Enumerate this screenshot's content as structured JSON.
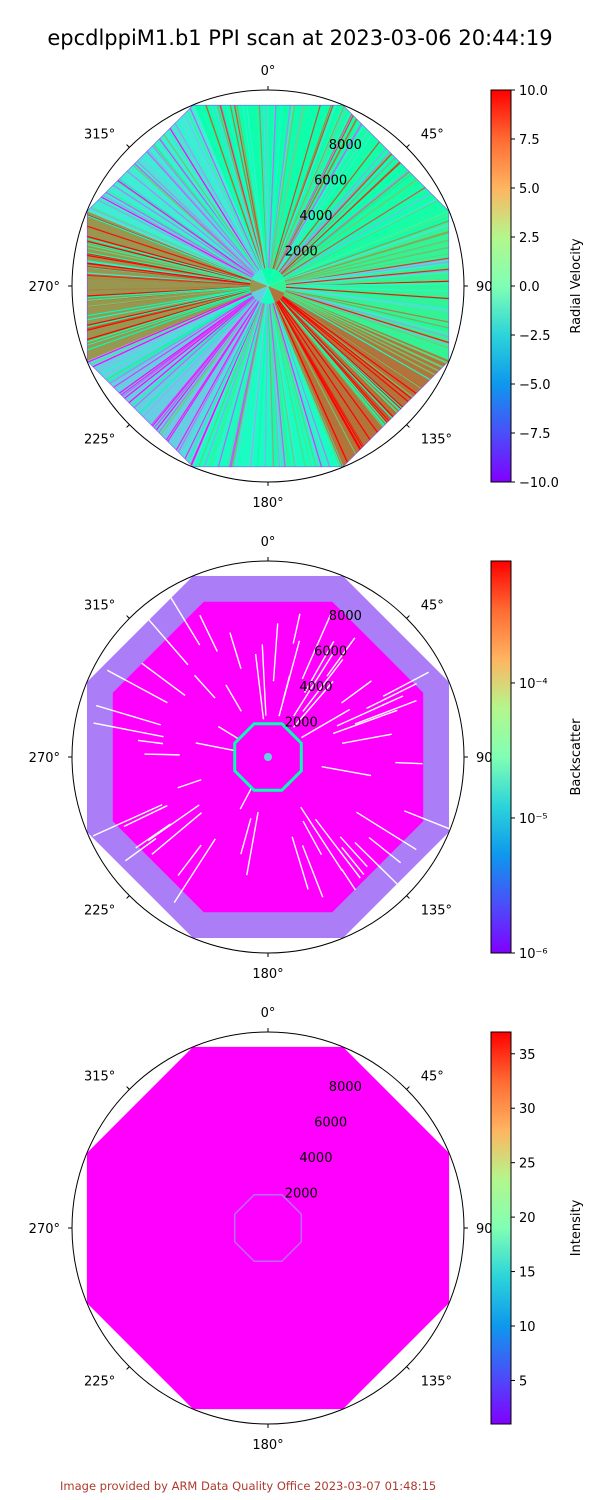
{
  "title": "epcdlppiM1.b1 PPI scan at 2023-03-06 20:44:19",
  "footer": "Image provided by ARM Data Quality Office 2023-03-07 01:48:15",
  "chart_data": [
    {
      "type": "heatmap",
      "projection": "polar",
      "panel": "radial-velocity",
      "theta_ticks": [
        "0°",
        "45°",
        "90°",
        "135°",
        "180°",
        "225°",
        "270°",
        "315°"
      ],
      "r_ticks": [
        "2000",
        "4000",
        "6000",
        "8000"
      ],
      "r_tick_values": [
        2000,
        4000,
        6000,
        8000
      ],
      "rmax": 10200,
      "colorbar": {
        "label": "Radial Velocity",
        "scale": "linear",
        "range": [
          -10.0,
          10.0
        ],
        "ticks": [
          {
            "value": 10.0,
            "label": "10.0"
          },
          {
            "value": 7.5,
            "label": "7.5"
          },
          {
            "value": 5.0,
            "label": "5.0"
          },
          {
            "value": 2.5,
            "label": "2.5"
          },
          {
            "value": 0.0,
            "label": "0.0"
          },
          {
            "value": -2.5,
            "label": "−2.5"
          },
          {
            "value": -5.0,
            "label": "−5.0"
          },
          {
            "value": -7.5,
            "label": "−7.5"
          },
          {
            "value": -10.0,
            "label": "−10.0"
          }
        ],
        "colormap": "rainbow"
      },
      "sectors": [
        {
          "azimuth_range": [
            337.5,
            22.5
          ],
          "value": 0.5
        },
        {
          "azimuth_range": [
            22.5,
            67.5
          ],
          "value": 0.8
        },
        {
          "azimuth_range": [
            67.5,
            112.5
          ],
          "value": 2.0
        },
        {
          "azimuth_range": [
            112.5,
            157.5
          ],
          "value": 7.0
        },
        {
          "azimuth_range": [
            157.5,
            202.5
          ],
          "value": -1.0
        },
        {
          "azimuth_range": [
            202.5,
            247.5
          ],
          "value": -4.0
        },
        {
          "azimuth_range": [
            247.5,
            292.5
          ],
          "value": 6.0
        },
        {
          "azimuth_range": [
            292.5,
            337.5
          ],
          "value": -2.5
        }
      ]
    },
    {
      "type": "heatmap",
      "projection": "polar",
      "panel": "backscatter",
      "theta_ticks": [
        "0°",
        "45°",
        "90°",
        "135°",
        "180°",
        "225°",
        "270°",
        "315°"
      ],
      "r_ticks": [
        "2000",
        "4000",
        "6000",
        "8000"
      ],
      "r_tick_values": [
        2000,
        4000,
        6000,
        8000
      ],
      "rmax": 10200,
      "colorbar": {
        "label": "Backscatter",
        "scale": "log",
        "range": [
          1e-06,
          0.0008
        ],
        "ticks": [
          {
            "value": 0.0001,
            "label": "10⁻⁴"
          },
          {
            "value": 1e-05,
            "label": "10⁻⁵"
          },
          {
            "value": 1e-06,
            "label": "10⁻⁶"
          }
        ],
        "colormap": "rainbow"
      },
      "background_value": 1e-06,
      "outer_band_value": 3e-06,
      "ring_value": 3e-05
    },
    {
      "type": "heatmap",
      "projection": "polar",
      "panel": "intensity",
      "theta_ticks": [
        "0°",
        "45°",
        "90°",
        "135°",
        "180°",
        "225°",
        "270°",
        "315°"
      ],
      "r_ticks": [
        "2000",
        "4000",
        "6000",
        "8000"
      ],
      "r_tick_values": [
        2000,
        4000,
        6000,
        8000
      ],
      "rmax": 10200,
      "colorbar": {
        "label": "Intensity",
        "scale": "linear",
        "range": [
          1.0,
          37.0
        ],
        "ticks": [
          {
            "value": 35,
            "label": "35"
          },
          {
            "value": 30,
            "label": "30"
          },
          {
            "value": 25,
            "label": "25"
          },
          {
            "value": 20,
            "label": "20"
          },
          {
            "value": 15,
            "label": "15"
          },
          {
            "value": 10,
            "label": "10"
          },
          {
            "value": 5,
            "label": "5"
          }
        ],
        "colormap": "rainbow"
      },
      "fill_value": 1.0,
      "ring_value": 6.0
    }
  ]
}
